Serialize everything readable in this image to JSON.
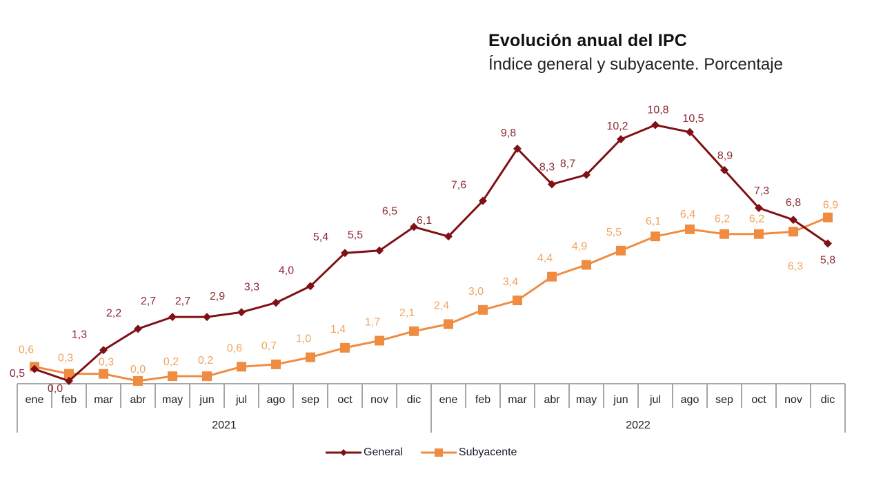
{
  "chart_data": {
    "type": "line",
    "title": "Evolución anual del IPC",
    "subtitle": "Índice general y subyacente. Porcentaje",
    "xlabel": "",
    "ylabel": "",
    "ylim": [
      0,
      11
    ],
    "grid": false,
    "legend_position": "bottom-center",
    "years": [
      "2021",
      "2022"
    ],
    "categories": [
      "ene",
      "feb",
      "mar",
      "abr",
      "may",
      "jun",
      "jul",
      "ago",
      "sep",
      "oct",
      "nov",
      "dic",
      "ene",
      "feb",
      "mar",
      "abr",
      "may",
      "jun",
      "jul",
      "ago",
      "sep",
      "oct",
      "nov",
      "dic"
    ],
    "series": [
      {
        "name": "General",
        "color": "#7f1015",
        "label_color": "#8c2a36",
        "marker": "diamond",
        "values": [
          0.5,
          0.0,
          1.3,
          2.2,
          2.7,
          2.7,
          2.9,
          3.3,
          4.0,
          5.4,
          5.5,
          6.5,
          6.1,
          7.6,
          9.8,
          8.3,
          8.7,
          10.2,
          10.8,
          10.5,
          8.9,
          7.3,
          6.8,
          5.8
        ],
        "labels": [
          "0,5",
          "0,0",
          "1,3",
          "2,2",
          "2,7",
          "2,7",
          "2,9",
          "3,3",
          "4,0",
          "5,4",
          "5,5",
          "6,5",
          "6,1",
          "7,6",
          "9,8",
          "8,3",
          "8,7",
          "10,2",
          "10,8",
          "10,5",
          "8,9",
          "7,3",
          "6,8",
          "5,8"
        ]
      },
      {
        "name": "Subyacente",
        "color": "#f08c42",
        "label_color": "#f2a35c",
        "marker": "square",
        "values": [
          0.6,
          0.3,
          0.3,
          0.0,
          0.2,
          0.2,
          0.6,
          0.7,
          1.0,
          1.4,
          1.7,
          2.1,
          2.4,
          3.0,
          3.4,
          4.4,
          4.9,
          5.5,
          6.1,
          6.4,
          6.2,
          6.2,
          6.3,
          6.9
        ],
        "labels": [
          "0,6",
          "0,3",
          "0,3",
          "0,0",
          "0,2",
          "0,2",
          "0,6",
          "0,7",
          "1,0",
          "1,4",
          "1,7",
          "2,1",
          "2,4",
          "3,0",
          "3,4",
          "4,4",
          "4,9",
          "5,5",
          "6,1",
          "6,4",
          "6,2",
          "6,2",
          "6,3",
          "6,9"
        ]
      }
    ]
  }
}
